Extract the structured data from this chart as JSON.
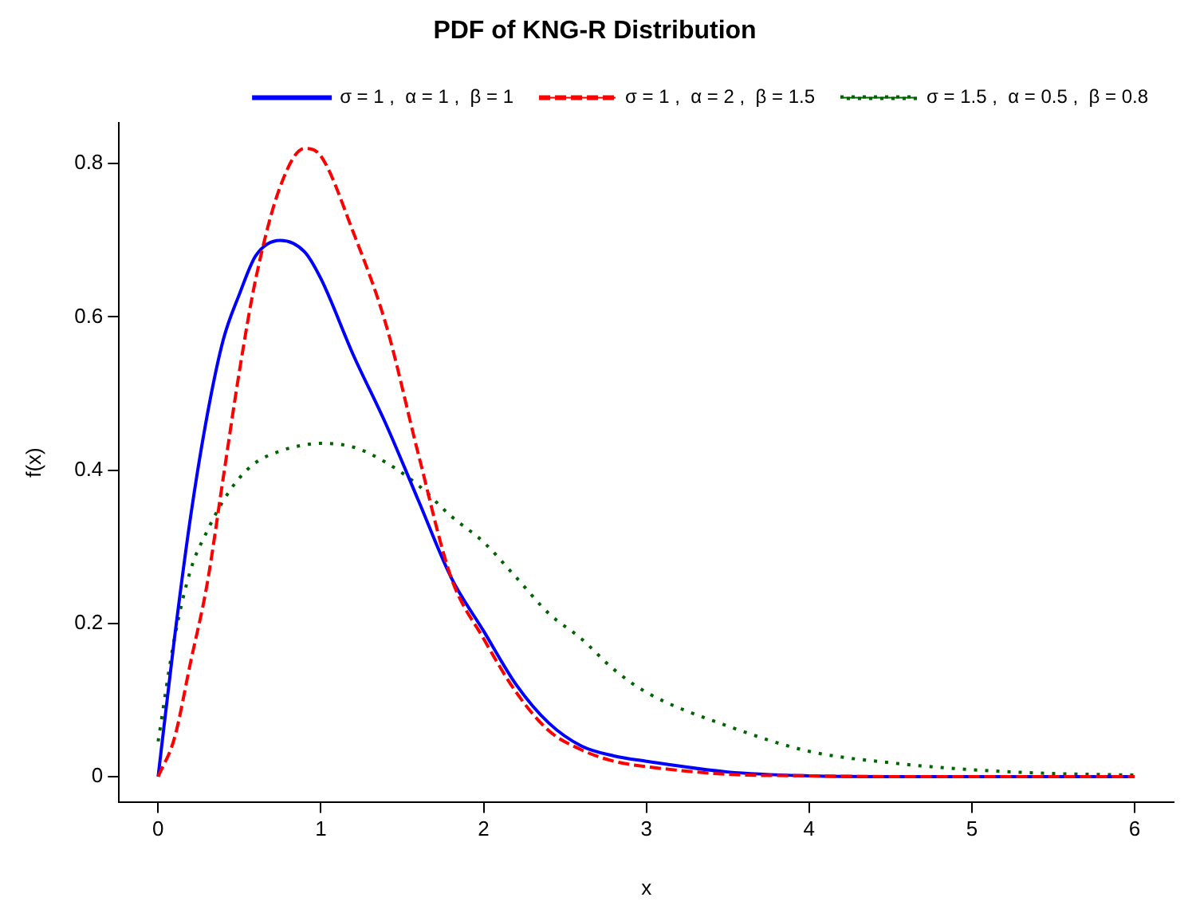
{
  "chart_data": {
    "type": "line",
    "title": "PDF of KNG-R Distribution",
    "xlabel": "x",
    "ylabel": "f(x)",
    "x": [
      0,
      0.1,
      0.2,
      0.3,
      0.4,
      0.5,
      0.6,
      0.75,
      0.9,
      1.0,
      1.2,
      1.4,
      1.6,
      1.8,
      2.0,
      2.2,
      2.4,
      2.6,
      2.8,
      3.0,
      3.5,
      4.0,
      4.5,
      5.0,
      5.5,
      6.0
    ],
    "series": [
      {
        "name": "σ = 1 ,  α = 1 ,  β = 1",
        "color": "#0000ff",
        "line_style": "solid",
        "values": [
          0,
          0.18,
          0.34,
          0.47,
          0.57,
          0.63,
          0.68,
          0.7,
          0.685,
          0.65,
          0.55,
          0.46,
          0.36,
          0.26,
          0.19,
          0.12,
          0.07,
          0.04,
          0.027,
          0.02,
          0.006,
          0.001,
          0,
          0,
          0,
          0
        ]
      },
      {
        "name": "σ = 1 ,  α = 2 ,  β = 1.5",
        "color": "#ff0000",
        "line_style": "dashed",
        "values": [
          0,
          0.05,
          0.15,
          0.25,
          0.39,
          0.53,
          0.65,
          0.77,
          0.82,
          0.81,
          0.71,
          0.59,
          0.42,
          0.26,
          0.18,
          0.11,
          0.06,
          0.035,
          0.02,
          0.013,
          0.003,
          0.001,
          0,
          0,
          0,
          0
        ]
      },
      {
        "name": "σ = 1.5 ,  α = 0.5 ,  β = 0.8",
        "color": "#006400",
        "line_style": "dotted",
        "values": [
          0.046,
          0.18,
          0.27,
          0.32,
          0.36,
          0.39,
          0.41,
          0.425,
          0.433,
          0.435,
          0.43,
          0.41,
          0.38,
          0.34,
          0.306,
          0.26,
          0.213,
          0.18,
          0.14,
          0.11,
          0.066,
          0.033,
          0.018,
          0.009,
          0.004,
          0.002
        ]
      }
    ],
    "xlim": [
      -0.24,
      6.24
    ],
    "ylim": [
      -0.033,
      0.853
    ],
    "xticks": [
      0,
      1,
      2,
      3,
      4,
      5,
      6
    ],
    "yticks": [
      0,
      0.2,
      0.4,
      0.6,
      0.8
    ],
    "grid": false,
    "legend": "top right",
    "marker": "none"
  }
}
